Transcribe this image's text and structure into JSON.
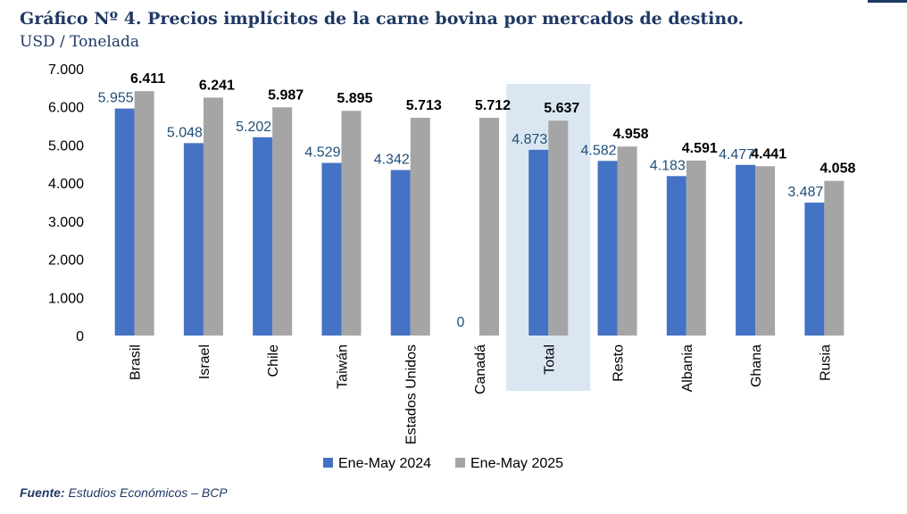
{
  "header": {
    "title": "Gráfico Nº 4. Precios implícitos de la carne bovina por mercados de destino.",
    "subtitle": "USD / Tonelada"
  },
  "footer": {
    "source_label": "Fuente:",
    "source_text": " Estudios Económicos – BCP"
  },
  "colors": {
    "series_2024": "#4472c4",
    "series_2025": "#a5a5a5",
    "highlight": "#dae7f3",
    "value_2024": "#1f4e79",
    "value_2025": "#000000",
    "axis_text": "#000000"
  },
  "chart_data": {
    "type": "bar",
    "title": "Gráfico Nº 4. Precios implícitos de la carne bovina por mercados de destino.",
    "ylabel": "USD / Tonelada",
    "xlabel": "",
    "ylim": [
      0,
      7000
    ],
    "yticks": [
      0,
      1000,
      2000,
      3000,
      4000,
      5000,
      6000,
      7000
    ],
    "ytick_labels": [
      "0",
      "1.000",
      "2.000",
      "3.000",
      "4.000",
      "5.000",
      "6.000",
      "7.000"
    ],
    "grid": false,
    "legend_position": "bottom",
    "highlight_category": "Total",
    "categories": [
      "Brasil",
      "Israel",
      "Chile",
      "Taiwán",
      "Estados Unidos",
      "Canadá",
      "Total",
      "Resto",
      "Albania",
      "Ghana",
      "Rusia"
    ],
    "series": [
      {
        "name": "Ene-May 2024",
        "values": [
          5955,
          5048,
          5202,
          4529,
          4342,
          0,
          4873,
          4582,
          4183,
          4477,
          3487
        ],
        "labels": [
          "5.955",
          "5.048",
          "5.202",
          "4.529",
          "4.342",
          "0",
          "4.873",
          "4.582",
          "4.183",
          "4.477",
          "3.487"
        ]
      },
      {
        "name": "Ene-May 2025",
        "values": [
          6411,
          6241,
          5987,
          5895,
          5713,
          5712,
          5637,
          4958,
          4591,
          4441,
          4058
        ],
        "labels": [
          "6.411",
          "6.241",
          "5.987",
          "5.895",
          "5.713",
          "5.712",
          "5.637",
          "4.958",
          "4.591",
          "4.441",
          "4.058"
        ]
      }
    ]
  }
}
